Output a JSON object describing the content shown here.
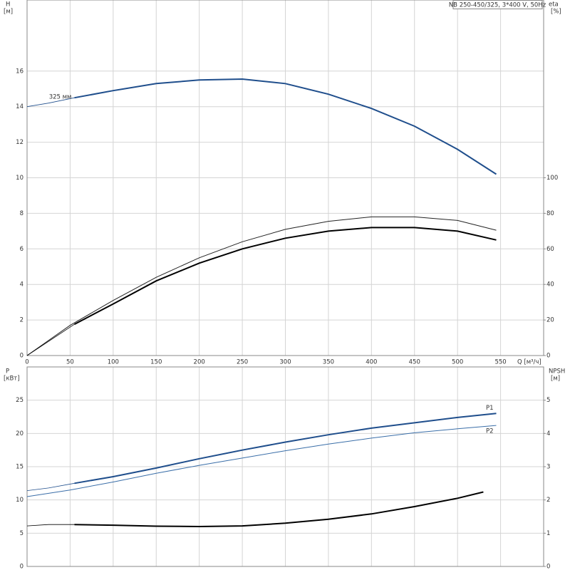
{
  "chart_data": [
    {
      "type": "line",
      "title": "NB 250-450/325, 3*400 V, 50Hz",
      "ylabel": "H",
      "yunit": "[м]",
      "y2label": "eta",
      "y2unit": "[%]",
      "xlabel": "Q [м³/ч]",
      "xlim": [
        0,
        600
      ],
      "xticks": [
        0,
        50,
        100,
        150,
        200,
        250,
        300,
        350,
        400,
        450,
        500,
        550
      ],
      "show_xtick_labels": true,
      "ylim": [
        0,
        20
      ],
      "yticks": [
        0,
        2,
        4,
        6,
        8,
        10,
        12,
        14,
        16
      ],
      "y2lim": [
        0,
        200
      ],
      "y2ticks": [
        0,
        20,
        40,
        60,
        80,
        100
      ],
      "grid": true,
      "series": [
        {
          "color": "#1f4e8c",
          "width": 0.8,
          "axis": "y",
          "x": [
            0,
            25,
            55
          ],
          "values": [
            14.0,
            14.2,
            14.5
          ]
        },
        {
          "name": "325 мм",
          "label_pos": "start",
          "color": "#1f4e8c",
          "width": 2,
          "axis": "y",
          "x": [
            55,
            100,
            150,
            200,
            250,
            300,
            350,
            400,
            450,
            500,
            545
          ],
          "values": [
            14.5,
            14.9,
            15.3,
            15.5,
            15.55,
            15.3,
            14.7,
            13.9,
            12.9,
            11.6,
            10.2
          ]
        },
        {
          "color": "#222222",
          "width": 1,
          "axis": "y2",
          "x": [
            0,
            50,
            100,
            150,
            200,
            250,
            300,
            350,
            400,
            450,
            500,
            545
          ],
          "values": [
            0,
            17,
            31,
            44,
            55,
            64,
            71,
            75.5,
            78,
            78,
            76,
            70.5
          ]
        },
        {
          "color": "#000000",
          "width": 0.8,
          "axis": "y2",
          "x": [
            0,
            55
          ],
          "values": [
            0,
            17.6
          ]
        },
        {
          "color": "#000000",
          "width": 2,
          "axis": "y2",
          "x": [
            55,
            100,
            150,
            200,
            250,
            300,
            350,
            400,
            450,
            500,
            545
          ],
          "values": [
            17.6,
            29,
            42,
            52,
            60,
            66,
            70,
            72,
            72,
            70,
            65
          ]
        }
      ]
    },
    {
      "type": "line",
      "ylabel": "P",
      "yunit": "[кВт]",
      "y2label": "NPSH",
      "y2unit": "[м]",
      "xlim": [
        0,
        600
      ],
      "xticks": [
        0,
        50,
        100,
        150,
        200,
        250,
        300,
        350,
        400,
        450,
        500,
        550
      ],
      "show_xtick_labels": false,
      "ylim": [
        0,
        30
      ],
      "yticks": [
        0,
        5,
        10,
        15,
        20,
        25
      ],
      "y2lim": [
        0,
        6
      ],
      "y2ticks": [
        0,
        1,
        2,
        3,
        4,
        5
      ],
      "grid": true,
      "series": [
        {
          "color": "#1f4e8c",
          "width": 0.8,
          "axis": "y",
          "x": [
            0,
            25,
            55
          ],
          "values": [
            11.4,
            11.8,
            12.5
          ]
        },
        {
          "name": "P1",
          "label_pos": "end-above",
          "color": "#1f4e8c",
          "width": 2,
          "axis": "y",
          "x": [
            55,
            100,
            150,
            200,
            250,
            300,
            350,
            400,
            450,
            500,
            545
          ],
          "values": [
            12.5,
            13.5,
            14.8,
            16.2,
            17.5,
            18.7,
            19.8,
            20.8,
            21.6,
            22.4,
            23.0
          ]
        },
        {
          "name": "P2",
          "label_pos": "end-below",
          "color": "#3a6ea8",
          "width": 1,
          "axis": "y",
          "x": [
            0,
            50,
            100,
            150,
            200,
            250,
            300,
            350,
            400,
            450,
            500,
            545
          ],
          "values": [
            10.5,
            11.5,
            12.7,
            14.0,
            15.2,
            16.3,
            17.4,
            18.4,
            19.3,
            20.1,
            20.7,
            21.2
          ]
        },
        {
          "color": "#000000",
          "width": 0.8,
          "axis": "y2",
          "x": [
            0,
            25,
            55
          ],
          "values": [
            1.22,
            1.26,
            1.26
          ]
        },
        {
          "color": "#000000",
          "width": 2,
          "axis": "y2",
          "x": [
            55,
            100,
            150,
            200,
            250,
            300,
            350,
            400,
            450,
            500,
            530
          ],
          "values": [
            1.26,
            1.24,
            1.21,
            1.2,
            1.22,
            1.3,
            1.42,
            1.58,
            1.8,
            2.05,
            2.24
          ]
        }
      ]
    }
  ]
}
